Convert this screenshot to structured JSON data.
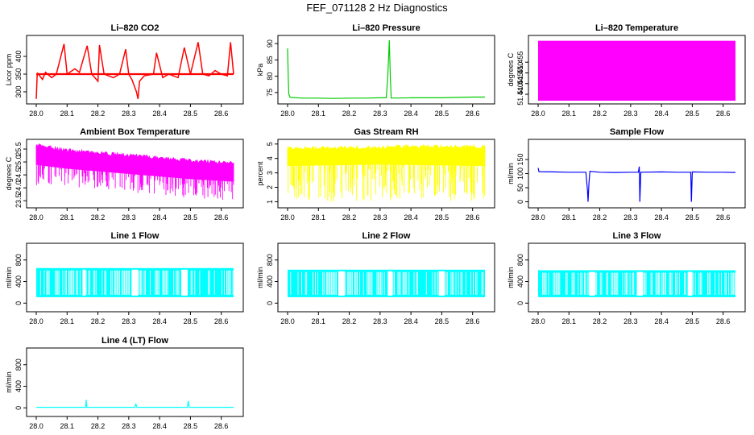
{
  "title": "FEF_071128  2 Hz Diagnostics",
  "chart_data": [
    {
      "type": "line",
      "title": "Li–820 CO2",
      "ylabel": "Licor ppm",
      "xlim": [
        28.0,
        28.64
      ],
      "ylim": [
        275,
        450
      ],
      "x_ticks": [
        "28.0",
        "28.1",
        "28.2",
        "28.3",
        "28.4",
        "28.5",
        "28.6"
      ],
      "y_ticks": [
        {
          "value": 300,
          "label": "300"
        },
        {
          "value": 350,
          "label": "350"
        },
        {
          "value": 400,
          "label": "400"
        }
      ],
      "color": "#ff0000",
      "pattern": "co2",
      "baseline": 350,
      "points": [
        [
          28.0,
          280
        ],
        [
          28.003,
          345
        ],
        [
          28.005,
          352
        ],
        [
          28.02,
          335
        ],
        [
          28.03,
          355
        ],
        [
          28.05,
          340
        ],
        [
          28.065,
          350
        ],
        [
          28.09,
          435
        ],
        [
          28.1,
          350
        ],
        [
          28.125,
          365
        ],
        [
          28.14,
          355
        ],
        [
          28.165,
          430
        ],
        [
          28.18,
          350
        ],
        [
          28.2,
          330
        ],
        [
          28.205,
          432
        ],
        [
          28.22,
          350
        ],
        [
          28.25,
          340
        ],
        [
          28.27,
          350
        ],
        [
          28.29,
          420
        ],
        [
          28.3,
          350
        ],
        [
          28.31,
          335
        ],
        [
          28.325,
          300
        ],
        [
          28.33,
          280
        ],
        [
          28.335,
          330
        ],
        [
          28.35,
          345
        ],
        [
          28.38,
          350
        ],
        [
          28.39,
          410
        ],
        [
          28.41,
          340
        ],
        [
          28.43,
          350
        ],
        [
          28.46,
          340
        ],
        [
          28.48,
          425
        ],
        [
          28.5,
          350
        ],
        [
          28.525,
          440
        ],
        [
          28.54,
          350
        ],
        [
          28.56,
          345
        ],
        [
          28.58,
          360
        ],
        [
          28.6,
          350
        ],
        [
          28.62,
          345
        ],
        [
          28.63,
          440
        ],
        [
          28.64,
          350
        ]
      ]
    },
    {
      "type": "line",
      "title": "Li–820 Pressure",
      "ylabel": "kPa",
      "xlim": [
        28.0,
        28.64
      ],
      "ylim": [
        72.5,
        91.5
      ],
      "x_ticks": [
        "28.0",
        "28.1",
        "28.2",
        "28.3",
        "28.4",
        "28.5",
        "28.6"
      ],
      "y_ticks": [
        {
          "value": 75,
          "label": "75"
        },
        {
          "value": 80,
          "label": "80"
        },
        {
          "value": 85,
          "label": "85"
        },
        {
          "value": 90,
          "label": "90"
        }
      ],
      "color": "#00cc00",
      "pattern": "line",
      "points": [
        [
          28.0,
          88.5
        ],
        [
          28.002,
          80.0
        ],
        [
          28.004,
          74.5
        ],
        [
          28.008,
          73.5
        ],
        [
          28.05,
          73.3
        ],
        [
          28.1,
          73.3
        ],
        [
          28.15,
          73.2
        ],
        [
          28.2,
          73.3
        ],
        [
          28.25,
          73.3
        ],
        [
          28.3,
          73.4
        ],
        [
          28.32,
          73.4
        ],
        [
          28.325,
          80
        ],
        [
          28.33,
          91
        ],
        [
          28.333,
          80
        ],
        [
          28.336,
          73.3
        ],
        [
          28.4,
          73.4
        ],
        [
          28.45,
          73.4
        ],
        [
          28.5,
          73.4
        ],
        [
          28.55,
          73.5
        ],
        [
          28.6,
          73.6
        ],
        [
          28.64,
          73.6
        ]
      ]
    },
    {
      "type": "area",
      "title": "Li–820 Temperature",
      "ylabel": "degrees C",
      "xlim": [
        28.0,
        28.64
      ],
      "ylim": [
        51.437,
        51.466
      ],
      "x_ticks": [
        "28.0",
        "28.1",
        "28.2",
        "28.3",
        "28.4",
        "28.5",
        "28.6"
      ],
      "y_ticks": [
        {
          "value": 51.44,
          "label": "51.440"
        },
        {
          "value": 51.445,
          "label": "51.445"
        },
        {
          "value": 51.45,
          "label": "51.450"
        },
        {
          "value": 51.455,
          "label": "51.455"
        }
      ],
      "color": "#ff00ff",
      "pattern": "band",
      "band": {
        "x0": 28.0,
        "x1": 28.64,
        "low": 51.437,
        "high": 51.465
      }
    },
    {
      "type": "area",
      "title": "Ambient Box Temperature",
      "ylabel": "degrees C",
      "xlim": [
        28.0,
        28.64
      ],
      "ylim": [
        23.35,
        25.75
      ],
      "x_ticks": [
        "28.0",
        "28.1",
        "28.2",
        "28.3",
        "28.4",
        "28.5",
        "28.6"
      ],
      "y_ticks": [
        {
          "value": 23.5,
          "label": "23.5"
        },
        {
          "value": 24.0,
          "label": "24.0"
        },
        {
          "value": 24.5,
          "label": "24.5"
        },
        {
          "value": 25.0,
          "label": "25.0"
        },
        {
          "value": 25.5,
          "label": "25.5"
        }
      ],
      "color": "#ff00ff",
      "pattern": "noise",
      "upper": [
        [
          28.0,
          25.65
        ],
        [
          28.1,
          25.45
        ],
        [
          28.2,
          25.35
        ],
        [
          28.3,
          25.25
        ],
        [
          28.4,
          25.15
        ],
        [
          28.5,
          25.05
        ],
        [
          28.64,
          24.95
        ]
      ],
      "lower": [
        [
          28.0,
          24.9
        ],
        [
          28.1,
          24.75
        ],
        [
          28.2,
          24.65
        ],
        [
          28.3,
          24.55
        ],
        [
          28.4,
          24.45
        ],
        [
          28.5,
          24.35
        ],
        [
          28.64,
          24.25
        ]
      ],
      "min": [
        [
          28.0,
          24.1
        ],
        [
          28.2,
          23.9
        ],
        [
          28.4,
          23.7
        ],
        [
          28.64,
          23.5
        ]
      ]
    },
    {
      "type": "area",
      "title": "Gas Stream RH",
      "ylabel": "percent",
      "xlim": [
        28.0,
        28.64
      ],
      "ylim": [
        0.8,
        5.1
      ],
      "x_ticks": [
        "28.0",
        "28.1",
        "28.2",
        "28.3",
        "28.4",
        "28.5",
        "28.6"
      ],
      "y_ticks": [
        {
          "value": 1,
          "label": "1"
        },
        {
          "value": 2,
          "label": "2"
        },
        {
          "value": 3,
          "label": "3"
        },
        {
          "value": 4,
          "label": "4"
        },
        {
          "value": 5,
          "label": "5"
        }
      ],
      "color": "#ffff00",
      "pattern": "noise",
      "upper": [
        [
          28.0,
          4.7
        ],
        [
          28.3,
          4.75
        ],
        [
          28.4,
          4.85
        ],
        [
          28.64,
          4.8
        ]
      ],
      "lower": [
        [
          28.0,
          3.5
        ],
        [
          28.3,
          3.6
        ],
        [
          28.64,
          3.5
        ]
      ],
      "min": [
        [
          28.0,
          1.0
        ],
        [
          28.64,
          1.0
        ]
      ]
    },
    {
      "type": "line",
      "title": "Sample Flow",
      "ylabel": "ml/min",
      "xlim": [
        28.0,
        28.64
      ],
      "ylim": [
        -10,
        210
      ],
      "x_ticks": [
        "28.0",
        "28.1",
        "28.2",
        "28.3",
        "28.4",
        "28.5",
        "28.6"
      ],
      "y_ticks": [
        {
          "value": 0,
          "label": "0"
        },
        {
          "value": 50,
          "label": "50"
        },
        {
          "value": 100,
          "label": "100"
        },
        {
          "value": 150,
          "label": "150"
        }
      ],
      "color": "#0000ff",
      "pattern": "line",
      "points": [
        [
          28.0,
          120
        ],
        [
          28.003,
          107
        ],
        [
          28.05,
          106
        ],
        [
          28.1,
          105
        ],
        [
          28.155,
          105
        ],
        [
          28.16,
          40
        ],
        [
          28.162,
          0
        ],
        [
          28.165,
          70
        ],
        [
          28.168,
          108
        ],
        [
          28.2,
          105
        ],
        [
          28.25,
          104
        ],
        [
          28.3,
          105
        ],
        [
          28.325,
          105
        ],
        [
          28.328,
          125
        ],
        [
          28.33,
          0
        ],
        [
          28.333,
          105
        ],
        [
          28.4,
          106
        ],
        [
          28.45,
          105
        ],
        [
          28.495,
          105
        ],
        [
          28.497,
          0
        ],
        [
          28.5,
          106
        ],
        [
          28.55,
          105
        ],
        [
          28.6,
          105
        ],
        [
          28.64,
          104
        ]
      ]
    },
    {
      "type": "area",
      "title": "Line 1 Flow",
      "ylabel": "ml/min",
      "xlim": [
        28.0,
        28.64
      ],
      "ylim": [
        -100,
        1050
      ],
      "x_ticks": [
        "28.0",
        "28.1",
        "28.2",
        "28.3",
        "28.4",
        "28.5",
        "28.6"
      ],
      "y_ticks": [
        {
          "value": 0,
          "label": "0"
        },
        {
          "value": 400,
          "label": "400"
        },
        {
          "value": 800,
          "label": "800"
        }
      ],
      "color": "#00ffff",
      "pattern": "pulse",
      "high": 650,
      "low": 110,
      "step": 0.004,
      "gaps": [
        [
          28.15,
          28.16
        ],
        [
          28.31,
          28.33
        ],
        [
          28.47,
          28.49
        ]
      ]
    },
    {
      "type": "area",
      "title": "Line 2 Flow",
      "ylabel": "ml/min",
      "xlim": [
        28.0,
        28.64
      ],
      "ylim": [
        -100,
        1050
      ],
      "x_ticks": [
        "28.0",
        "28.1",
        "28.2",
        "28.3",
        "28.4",
        "28.5",
        "28.6"
      ],
      "y_ticks": [
        {
          "value": 0,
          "label": "0"
        },
        {
          "value": 400,
          "label": "400"
        },
        {
          "value": 800,
          "label": "800"
        }
      ],
      "color": "#00ffff",
      "pattern": "pulse",
      "high": 620,
      "low": 110,
      "step": 0.004,
      "gaps": [
        [
          28.165,
          28.185
        ],
        [
          28.325,
          28.34
        ],
        [
          28.49,
          28.51
        ]
      ]
    },
    {
      "type": "area",
      "title": "Line 3 Flow",
      "ylabel": "ml/min",
      "xlim": [
        28.0,
        28.64
      ],
      "ylim": [
        -100,
        1050
      ],
      "x_ticks": [
        "28.0",
        "28.1",
        "28.2",
        "28.3",
        "28.4",
        "28.5",
        "28.6"
      ],
      "y_ticks": [
        {
          "value": 0,
          "label": "0"
        },
        {
          "value": 400,
          "label": "400"
        },
        {
          "value": 800,
          "label": "800"
        }
      ],
      "color": "#00ffff",
      "pattern": "pulse",
      "high": 610,
      "low": 110,
      "step": 0.004,
      "gaps": [
        [
          28.165,
          28.185
        ],
        [
          28.32,
          28.34
        ],
        [
          28.485,
          28.5
        ]
      ]
    },
    {
      "type": "line",
      "title": "Line 4 (LT) Flow",
      "ylabel": "ml/min",
      "xlim": [
        28.0,
        28.64
      ],
      "ylim": [
        -100,
        1050
      ],
      "x_ticks": [
        "28.0",
        "28.1",
        "28.2",
        "28.3",
        "28.4",
        "28.5",
        "28.6"
      ],
      "y_ticks": [
        {
          "value": 0,
          "label": "0"
        },
        {
          "value": 400,
          "label": "400"
        },
        {
          "value": 800,
          "label": "800"
        }
      ],
      "color": "#00ffff",
      "pattern": "line",
      "points": [
        [
          28.0,
          10
        ],
        [
          28.16,
          10
        ],
        [
          28.162,
          150
        ],
        [
          28.164,
          10
        ],
        [
          28.32,
          10
        ],
        [
          28.323,
          80
        ],
        [
          28.326,
          10
        ],
        [
          28.49,
          10
        ],
        [
          28.493,
          130
        ],
        [
          28.496,
          10
        ],
        [
          28.64,
          10
        ]
      ]
    }
  ]
}
